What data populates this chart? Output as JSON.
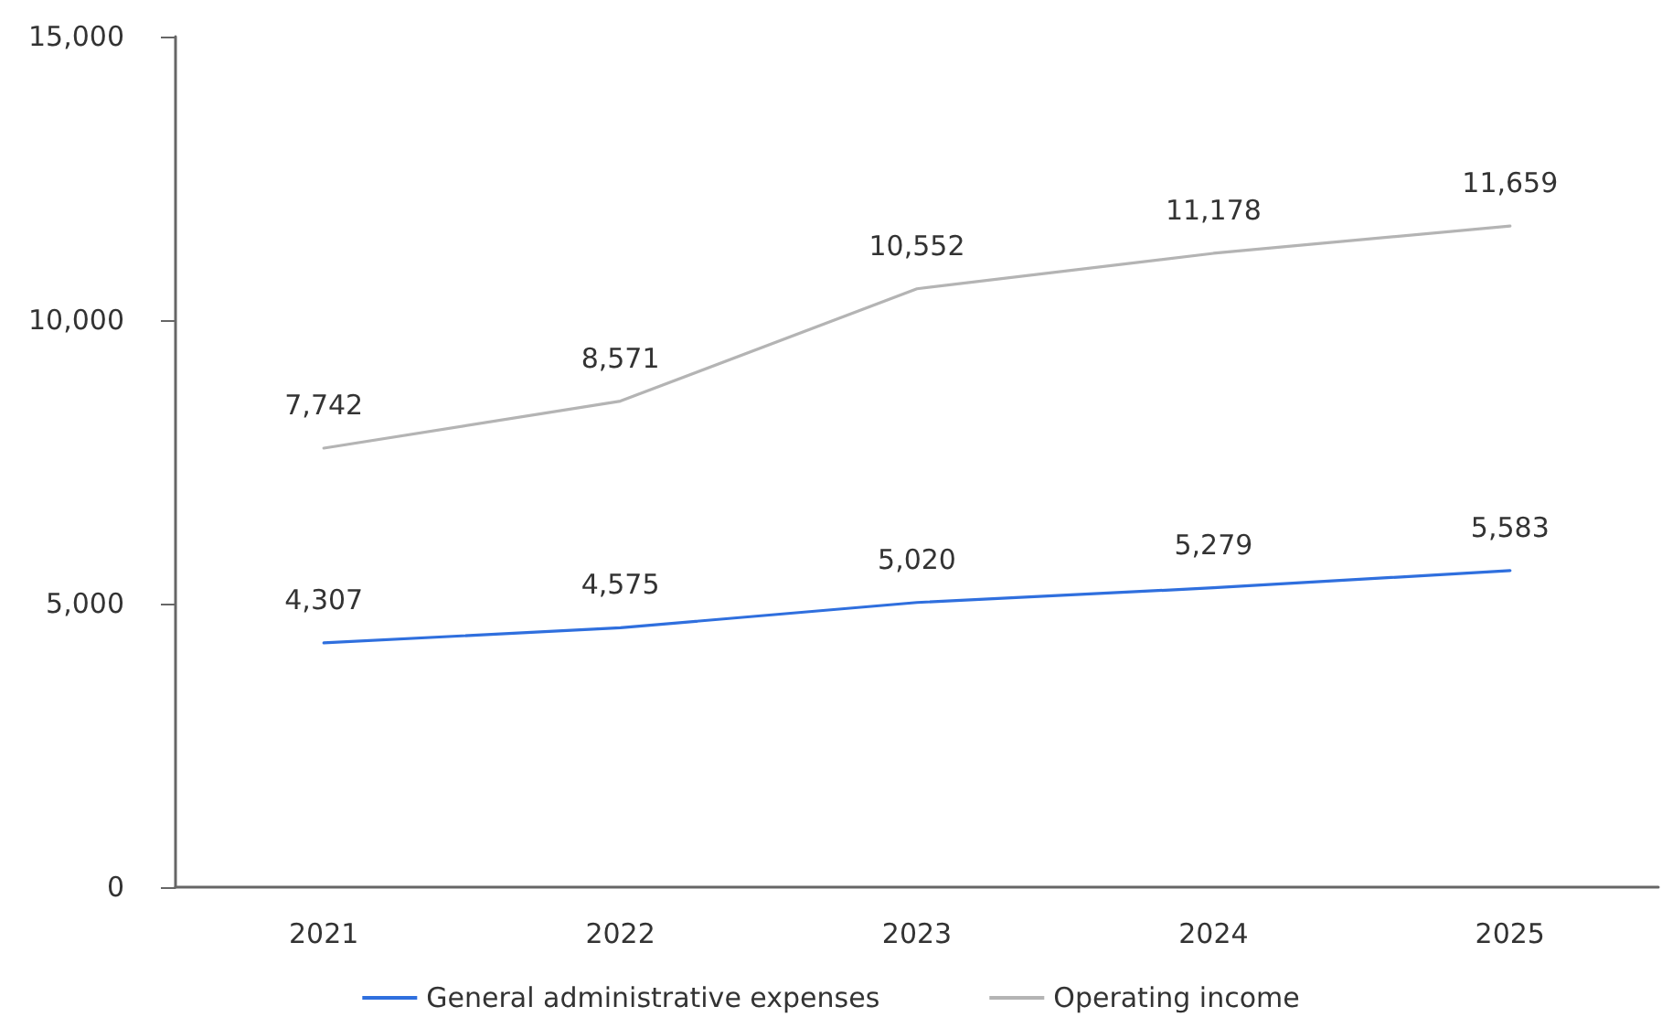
{
  "chart_data": {
    "type": "line",
    "categories": [
      "2021",
      "2022",
      "2023",
      "2024",
      "2025"
    ],
    "series": [
      {
        "name": "General administrative expenses",
        "color": "#2f6fde",
        "values": [
          4307,
          4575,
          5020,
          5279,
          5583
        ],
        "value_labels": [
          "4,307",
          "4,575",
          "5,020",
          "5,279",
          "5,583"
        ]
      },
      {
        "name": "Operating income",
        "color": "#b4b4b4",
        "values": [
          7742,
          8571,
          10552,
          11178,
          11659
        ],
        "value_labels": [
          "7,742",
          "8,571",
          "10,552",
          "11,178",
          "11,659"
        ]
      }
    ],
    "ylim": [
      0,
      15000
    ],
    "yticks": [
      0,
      {
        "value": 5000,
        "label": "5,000"
      },
      {
        "value": 10000,
        "label": "10,000"
      },
      {
        "value": 15000,
        "label": "15,000"
      }
    ],
    "grid": false,
    "legend": "bottom",
    "marker": "none",
    "line_style": "solid"
  }
}
